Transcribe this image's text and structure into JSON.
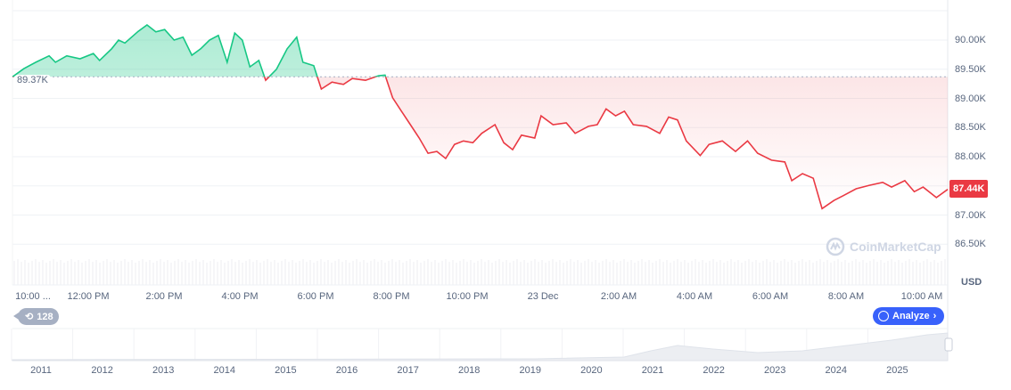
{
  "chart_data": {
    "type": "line",
    "currency": "USD",
    "unit": "K",
    "baseline": 89.37,
    "baseline_label": "89.37K",
    "current_price": 87.44,
    "current_price_label": "87.44K",
    "ylim": [
      86.2,
      90.7
    ],
    "y_ticks": [
      "90.00K",
      "89.50K",
      "89.00K",
      "88.50K",
      "88.00K",
      "87.50K",
      "87.00K",
      "86.50K"
    ],
    "y_tick_values": [
      90.0,
      89.5,
      89.0,
      88.5,
      88.0,
      87.5,
      87.0,
      86.5
    ],
    "x_ticks": [
      "10:00 ...",
      "12:00 PM",
      "2:00 PM",
      "4:00 PM",
      "6:00 PM",
      "8:00 PM",
      "10:00 PM",
      "23 Dec",
      "2:00 AM",
      "4:00 AM",
      "6:00 AM",
      "8:00 AM",
      "10:00 AM"
    ],
    "colors": {
      "up": "#16c784",
      "down": "#ea3943",
      "grid": "#eff2f5"
    },
    "points": [
      [
        "12-22 10:00",
        89.37
      ],
      [
        "12-22 10:18",
        89.51
      ],
      [
        "12-22 10:37",
        89.62
      ],
      [
        "12-22 10:58",
        89.73
      ],
      [
        "12-22 11:08",
        89.62
      ],
      [
        "12-22 11:26",
        89.73
      ],
      [
        "12-22 11:47",
        89.68
      ],
      [
        "12-22 12:08",
        89.77
      ],
      [
        "12-22 12:18",
        89.65
      ],
      [
        "12-22 12:37",
        89.85
      ],
      [
        "12-22 12:48",
        90.0
      ],
      [
        "12-22 12:58",
        89.95
      ],
      [
        "12-22 13:19",
        90.15
      ],
      [
        "12-22 13:33",
        90.26
      ],
      [
        "12-22 13:47",
        90.14
      ],
      [
        "12-22 14:01",
        90.18
      ],
      [
        "12-22 14:16",
        90.0
      ],
      [
        "12-22 14:30",
        90.05
      ],
      [
        "12-22 14:44",
        89.74
      ],
      [
        "12-22 14:58",
        89.85
      ],
      [
        "12-22 15:12",
        90.0
      ],
      [
        "12-22 15:26",
        90.08
      ],
      [
        "12-22 15:40",
        89.62
      ],
      [
        "12-22 15:52",
        90.12
      ],
      [
        "12-22 16:04",
        90.0
      ],
      [
        "12-22 16:16",
        89.54
      ],
      [
        "12-22 16:30",
        89.65
      ],
      [
        "12-22 16:41",
        89.31
      ],
      [
        "12-22 16:58",
        89.5
      ],
      [
        "12-22 17:15",
        89.85
      ],
      [
        "12-22 17:30",
        90.05
      ],
      [
        "12-22 17:40",
        89.62
      ],
      [
        "12-22 17:57",
        89.56
      ],
      [
        "12-22 18:09",
        89.16
      ],
      [
        "12-22 18:26",
        89.28
      ],
      [
        "12-22 18:44",
        89.24
      ],
      [
        "12-22 18:58",
        89.34
      ],
      [
        "12-22 19:19",
        89.31
      ],
      [
        "12-22 19:40",
        89.39
      ],
      [
        "12-22 19:50",
        89.4
      ],
      [
        "12-22 20:02",
        89.01
      ],
      [
        "12-22 20:16",
        88.78
      ],
      [
        "12-22 20:30",
        88.55
      ],
      [
        "12-22 20:44",
        88.32
      ],
      [
        "12-22 20:58",
        88.06
      ],
      [
        "12-22 21:12",
        88.09
      ],
      [
        "12-22 21:26",
        87.97
      ],
      [
        "12-22 21:40",
        88.21
      ],
      [
        "12-22 21:54",
        88.27
      ],
      [
        "12-22 22:09",
        88.24
      ],
      [
        "12-22 22:23",
        88.4
      ],
      [
        "12-22 22:44",
        88.55
      ],
      [
        "12-22 22:58",
        88.24
      ],
      [
        "12-22 23:12",
        88.12
      ],
      [
        "12-22 23:26",
        88.37
      ],
      [
        "12-22 23:47",
        88.32
      ],
      [
        "12-22 23:57",
        88.7
      ],
      [
        "12-23 00:16",
        88.55
      ],
      [
        "12-23 00:37",
        88.58
      ],
      [
        "12-23 00:51",
        88.4
      ],
      [
        "12-23 01:12",
        88.52
      ],
      [
        "12-23 01:26",
        88.55
      ],
      [
        "12-23 01:40",
        88.82
      ],
      [
        "12-23 01:55",
        88.7
      ],
      [
        "12-23 02:09",
        88.78
      ],
      [
        "12-23 02:23",
        88.55
      ],
      [
        "12-23 02:44",
        88.52
      ],
      [
        "12-23 03:05",
        88.4
      ],
      [
        "12-23 03:19",
        88.68
      ],
      [
        "12-23 03:33",
        88.63
      ],
      [
        "12-23 03:47",
        88.27
      ],
      [
        "12-23 04:09",
        88.02
      ],
      [
        "12-23 04:23",
        88.21
      ],
      [
        "12-23 04:44",
        88.27
      ],
      [
        "12-23 05:05",
        88.09
      ],
      [
        "12-23 05:24",
        88.27
      ],
      [
        "12-23 05:40",
        88.06
      ],
      [
        "12-23 06:02",
        87.94
      ],
      [
        "12-23 06:23",
        87.91
      ],
      [
        "12-23 06:34",
        87.59
      ],
      [
        "12-23 06:51",
        87.71
      ],
      [
        "12-23 07:08",
        87.63
      ],
      [
        "12-23 07:22",
        87.11
      ],
      [
        "12-23 07:41",
        87.25
      ],
      [
        "12-23 07:55",
        87.33
      ],
      [
        "12-23 08:16",
        87.45
      ],
      [
        "12-23 08:37",
        87.51
      ],
      [
        "12-23 08:58",
        87.56
      ],
      [
        "12-23 09:12",
        87.48
      ],
      [
        "12-23 09:33",
        87.59
      ],
      [
        "12-23 09:48",
        87.4
      ],
      [
        "12-23 10:02",
        87.48
      ],
      [
        "12-23 10:23",
        87.3
      ],
      [
        "12-23 10:41",
        87.44
      ]
    ]
  },
  "navigator": {
    "years": [
      "2011",
      "2012",
      "2013",
      "2014",
      "2015",
      "2016",
      "2017",
      "2018",
      "2019",
      "2020",
      "2021",
      "2022",
      "2023",
      "2024",
      "2025"
    ]
  },
  "controls": {
    "history_count": "128",
    "analyze_label": "Analyze",
    "usd_label": "USD",
    "watermark": "CoinMarketCap"
  }
}
